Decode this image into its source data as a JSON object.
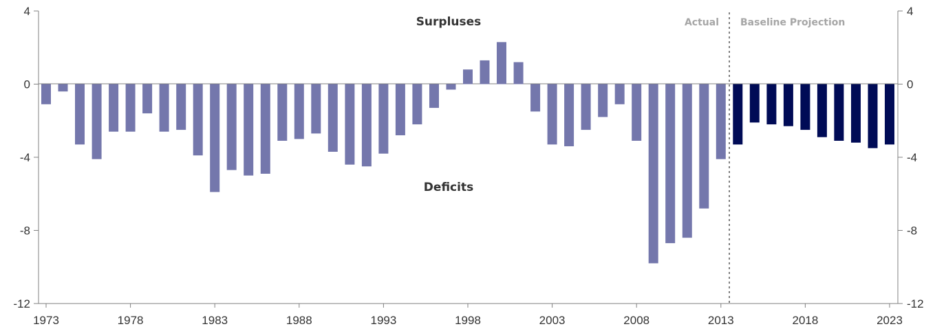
{
  "chart_data": {
    "type": "bar",
    "x": [
      1973,
      1974,
      1975,
      1976,
      1977,
      1978,
      1979,
      1980,
      1981,
      1982,
      1983,
      1984,
      1985,
      1986,
      1987,
      1988,
      1989,
      1990,
      1991,
      1992,
      1993,
      1994,
      1995,
      1996,
      1997,
      1998,
      1999,
      2000,
      2001,
      2002,
      2003,
      2004,
      2005,
      2006,
      2007,
      2008,
      2009,
      2010,
      2011,
      2012,
      2013,
      2014,
      2015,
      2016,
      2017,
      2018,
      2019,
      2020,
      2021,
      2022,
      2023
    ],
    "series": [
      {
        "values": [
          -1.1,
          -0.4,
          -3.3,
          -4.1,
          -2.6,
          -2.6,
          -1.6,
          -2.6,
          -2.5,
          -3.9,
          -5.9,
          -4.7,
          -5.0,
          -4.9,
          -3.1,
          -3.0,
          -2.7,
          -3.7,
          -4.4,
          -4.5,
          -3.8,
          -2.8,
          -2.2,
          -1.3,
          -0.3,
          0.8,
          1.3,
          2.3,
          1.2,
          -1.5,
          -3.3,
          -3.4,
          -2.5,
          -1.8,
          -1.1,
          -3.1,
          -9.8,
          -8.7,
          -8.4,
          -6.8,
          -4.1,
          null,
          null,
          null,
          null,
          null,
          null,
          null,
          null,
          null,
          null
        ],
        "color": "#7477ac"
      },
      {
        "values": [
          null,
          null,
          null,
          null,
          null,
          null,
          null,
          null,
          null,
          null,
          null,
          null,
          null,
          null,
          null,
          null,
          null,
          null,
          null,
          null,
          null,
          null,
          null,
          null,
          null,
          null,
          null,
          null,
          null,
          null,
          null,
          null,
          null,
          null,
          null,
          null,
          null,
          null,
          null,
          null,
          null,
          -3.3,
          -2.1,
          -2.2,
          -2.3,
          -2.5,
          -2.9,
          -3.1,
          -3.2,
          -3.5,
          -3.3
        ],
        "color": "#000b56"
      }
    ],
    "x_tick_labels": [
      "1973",
      "1978",
      "1983",
      "1988",
      "1993",
      "1998",
      "2003",
      "2008",
      "2013",
      "2018",
      "2023"
    ],
    "y_tick_labels": [
      "4",
      "0",
      "-4",
      "-8",
      "-12"
    ],
    "y_ticks": [
      4,
      0,
      -4,
      -8,
      -12
    ],
    "x_ticks": [
      1973,
      1978,
      1983,
      1988,
      1993,
      1998,
      2003,
      2008,
      2013,
      2018,
      2023
    ],
    "ylim": [
      -12,
      4
    ],
    "annotations": {
      "surpluses": "Surpluses",
      "deficits": "Deficits",
      "actual": "Actual",
      "projection": "Baseline Projection"
    },
    "divider_year": 2013.5,
    "grid": false
  }
}
